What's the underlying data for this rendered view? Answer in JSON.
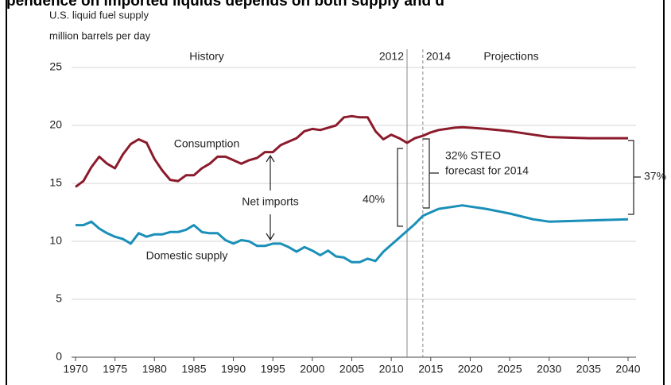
{
  "chart_data": {
    "type": "line",
    "title": "pendence on imported liquids depends on both supply and d",
    "y_label_1": "U.S. liquid fuel supply",
    "y_label_2": "million barrels per day",
    "x": [
      1970,
      1971,
      1972,
      1973,
      1974,
      1975,
      1976,
      1977,
      1978,
      1979,
      1980,
      1981,
      1982,
      1983,
      1984,
      1985,
      1986,
      1987,
      1988,
      1989,
      1990,
      1991,
      1992,
      1993,
      1994,
      1995,
      1996,
      1997,
      1998,
      1999,
      2000,
      2001,
      2002,
      2003,
      2004,
      2005,
      2006,
      2007,
      2008,
      2009,
      2010,
      2011,
      2012,
      2013,
      2014,
      2015,
      2016,
      2017,
      2018,
      2019,
      2020,
      2022,
      2025,
      2028,
      2030,
      2035,
      2040
    ],
    "series": [
      {
        "name": "Consumption",
        "color": "#8b1a2b",
        "values": [
          14.7,
          15.2,
          16.4,
          17.3,
          16.7,
          16.3,
          17.5,
          18.4,
          18.8,
          18.5,
          17.1,
          16.1,
          15.3,
          15.2,
          15.7,
          15.7,
          16.3,
          16.7,
          17.3,
          17.3,
          17.0,
          16.7,
          17.0,
          17.2,
          17.7,
          17.7,
          18.3,
          18.6,
          18.9,
          19.5,
          19.7,
          19.6,
          19.8,
          20.0,
          20.7,
          20.8,
          20.7,
          20.7,
          19.5,
          18.8,
          19.2,
          18.9,
          18.5,
          18.9,
          19.1,
          19.4,
          19.6,
          19.7,
          19.8,
          19.85,
          19.8,
          19.7,
          19.5,
          19.2,
          19.0,
          18.9,
          18.9
        ]
      },
      {
        "name": "Domestic supply",
        "color": "#1a8fb8",
        "values": [
          11.4,
          11.4,
          11.7,
          11.1,
          10.7,
          10.4,
          10.2,
          9.8,
          10.7,
          10.4,
          10.6,
          10.6,
          10.8,
          10.8,
          11.0,
          11.4,
          10.8,
          10.7,
          10.7,
          10.1,
          9.8,
          10.1,
          10.0,
          9.6,
          9.6,
          9.8,
          9.8,
          9.5,
          9.1,
          9.5,
          9.2,
          8.8,
          9.2,
          8.7,
          8.6,
          8.2,
          8.2,
          8.5,
          8.3,
          9.1,
          9.7,
          10.3,
          10.9,
          11.5,
          12.2,
          12.5,
          12.8,
          12.9,
          13.0,
          13.1,
          13.0,
          12.8,
          12.4,
          11.9,
          11.7,
          11.8,
          11.9
        ]
      }
    ],
    "xlim": [
      1970,
      2040
    ],
    "xticks": [
      1970,
      1975,
      1980,
      1985,
      1990,
      1995,
      2000,
      2005,
      2010,
      2015,
      2020,
      2025,
      2030,
      2035,
      2040
    ],
    "ylim": [
      0,
      25
    ],
    "yticks": [
      0,
      5,
      10,
      15,
      20,
      25
    ],
    "grid": true,
    "vlines": [
      {
        "x": 2012,
        "label": "2012",
        "dashed": false
      },
      {
        "x": 2014,
        "label": "2014",
        "dashed": true
      }
    ],
    "annotations": [
      "History",
      "Projections",
      "Net imports",
      "40%",
      "32% STEO",
      "forecast for 2014",
      "37%"
    ]
  }
}
